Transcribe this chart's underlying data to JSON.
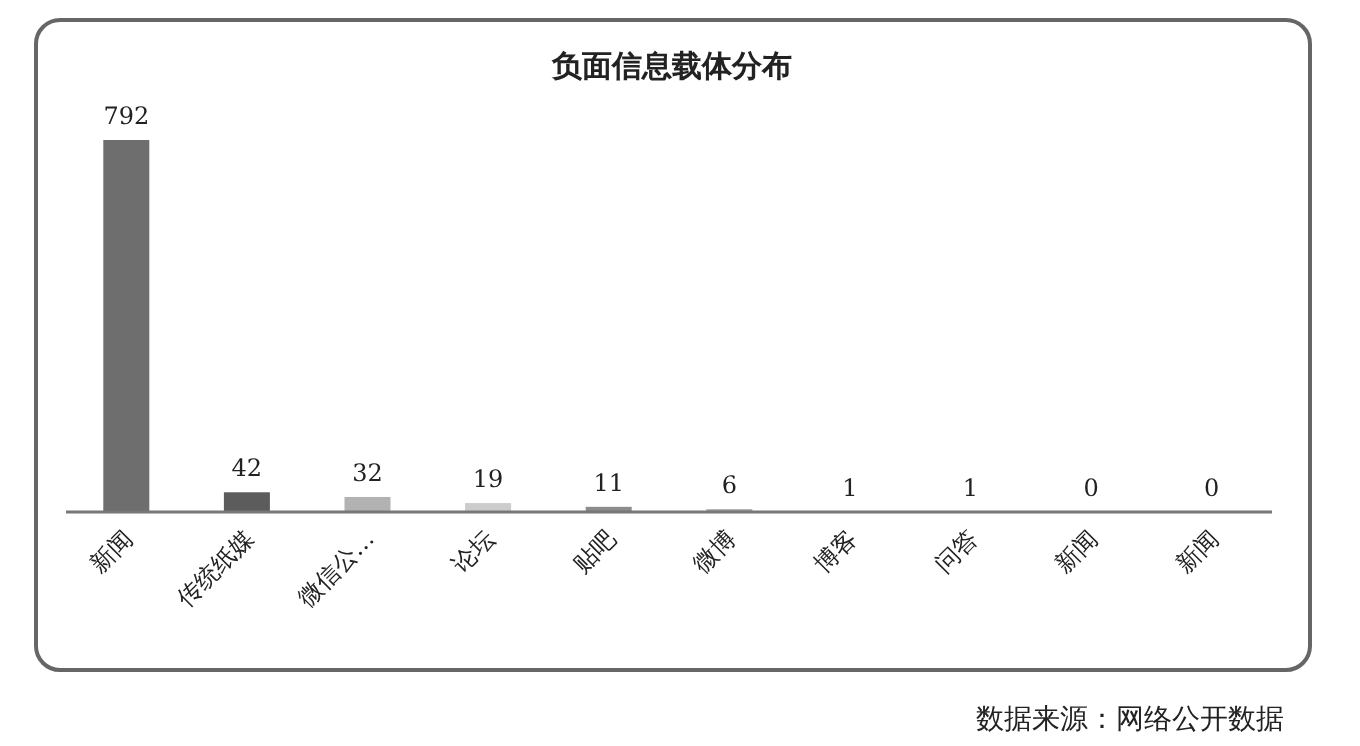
{
  "chart_data": {
    "type": "bar",
    "title": "负面信息载体分布",
    "categories": [
      "新闻",
      "传统纸媒",
      "微信公…",
      "论坛",
      "贴吧",
      "微博",
      "博客",
      "问答",
      "新闻",
      "新闻"
    ],
    "values": [
      792,
      42,
      32,
      19,
      11,
      6,
      1,
      1,
      0,
      0
    ],
    "colors": [
      "#6e6e6e",
      "#5c5c5c",
      "#b2b2b2",
      "#cccccc",
      "#8c8c8c",
      "#a4a4a4",
      "#7a7a7a",
      "#9a9a9a",
      "#808080",
      "#808080"
    ],
    "data_labels": true,
    "annotations": [
      "数据来源：网络公开数据"
    ]
  }
}
